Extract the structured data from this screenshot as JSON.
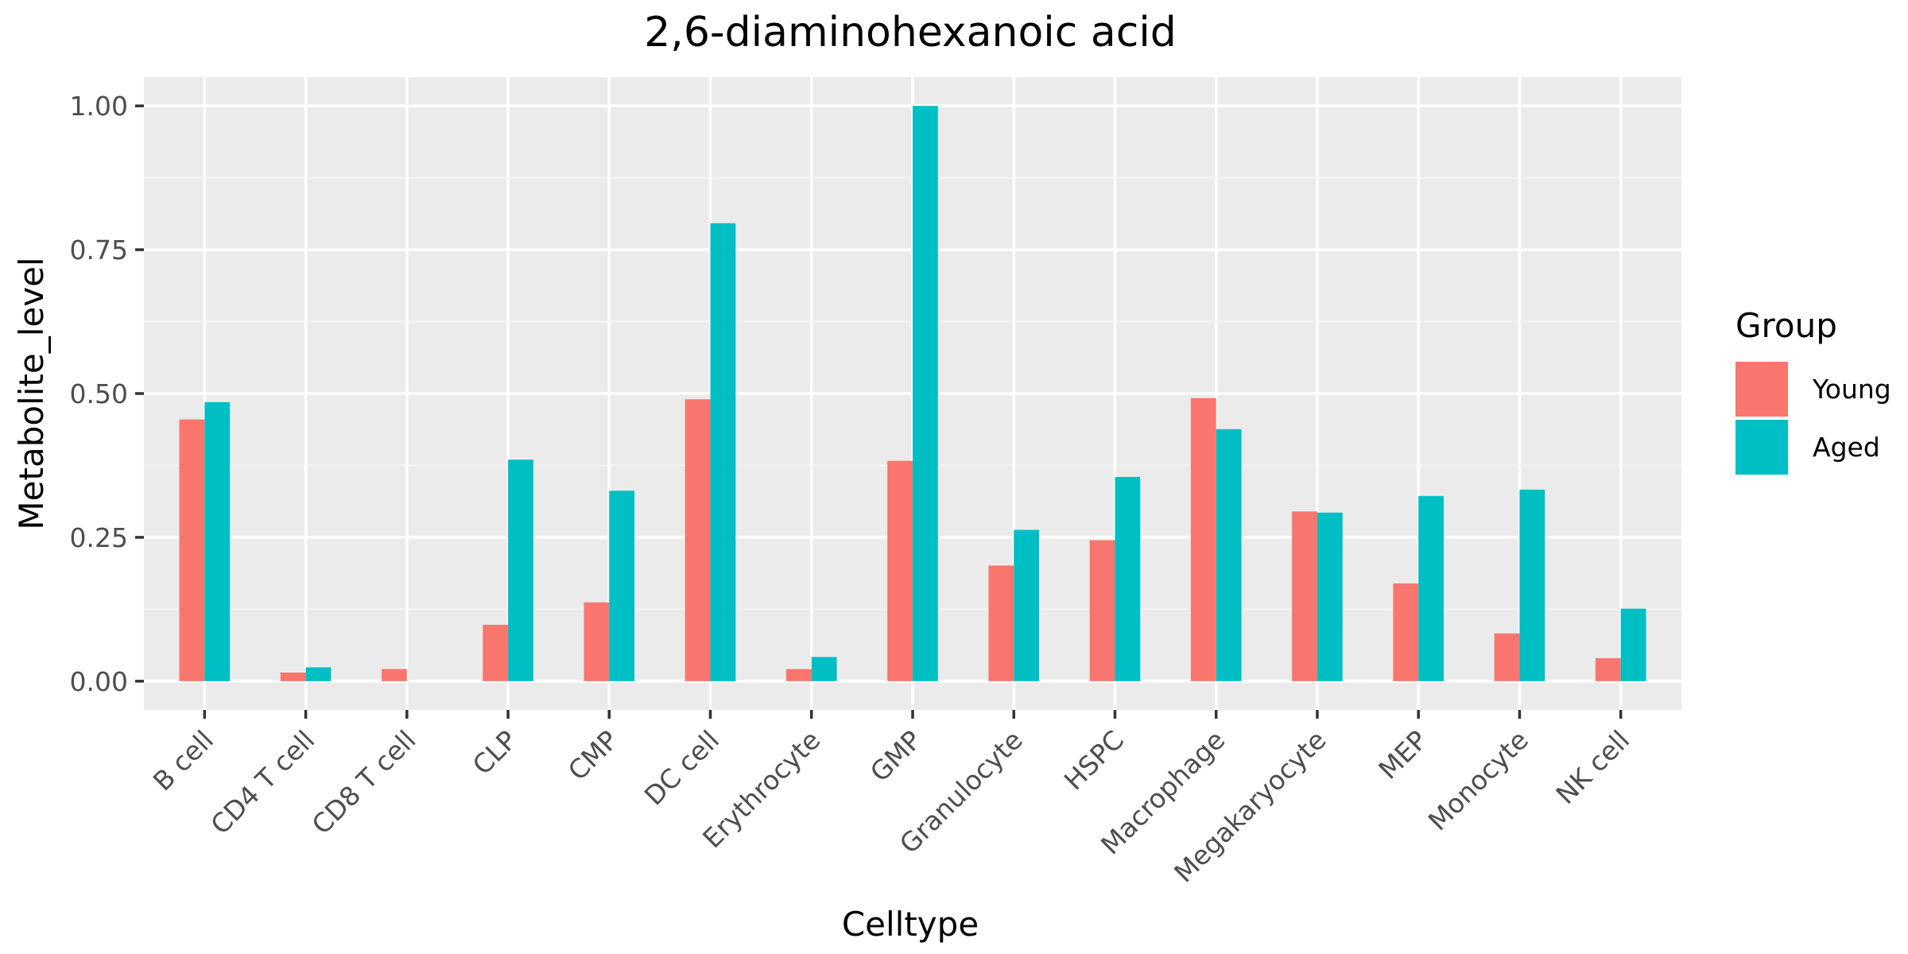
{
  "chart_data": {
    "type": "bar",
    "title": "2,6-diaminohexanoic acid",
    "xlabel": "Celltype",
    "ylabel": "Metabolite_level",
    "ylim": [
      -0.05,
      1.05
    ],
    "yticks": [
      "0.00",
      "0.25",
      "0.50",
      "0.75",
      "1.00"
    ],
    "grid": true,
    "legend_position": "right",
    "legend_title": "Group",
    "categories": [
      "B cell",
      "CD4 T cell",
      "CD8 T cell",
      "CLP",
      "CMP",
      "DC cell",
      "Erythrocyte",
      "GMP",
      "Granulocyte",
      "HSPC",
      "Macrophage",
      "Megakaryocyte",
      "MEP",
      "Monocyte",
      "NK cell"
    ],
    "series": [
      {
        "name": "Young",
        "color": "#F8766D",
        "values": [
          0.455,
          0.015,
          0.021,
          0.098,
          0.137,
          0.49,
          0.021,
          0.383,
          0.201,
          0.245,
          0.492,
          0.295,
          0.17,
          0.083,
          0.04
        ]
      },
      {
        "name": "Aged",
        "color": "#00BFC4",
        "values": [
          0.485,
          0.024,
          0.0,
          0.385,
          0.331,
          0.796,
          0.042,
          1.0,
          0.263,
          0.355,
          0.438,
          0.293,
          0.322,
          0.333,
          0.126
        ]
      }
    ],
    "colors": {
      "panel_background": "#EBEBEB",
      "grid_major": "#FFFFFF",
      "grid_minor": "#F5F5F5"
    }
  }
}
